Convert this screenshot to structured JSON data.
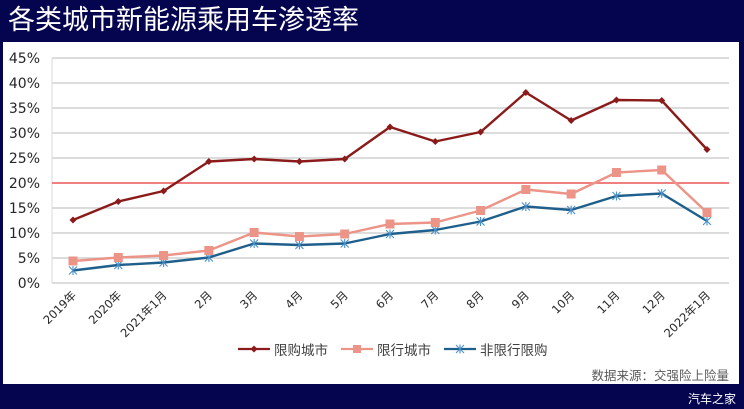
{
  "title": "各类城市新能源乘用车渗透率",
  "source_note": "数据来源：交强险上险量",
  "watermark": "汽车之家",
  "colors": {
    "background": "#05044f",
    "panel": "#ffffff",
    "grid": "#c8c8c8",
    "reference_line": "#f07070",
    "series_purchase_limited": "#8b1a1a",
    "series_traffic_limited": "#ec9488",
    "series_non_limited": "#1f5f8b"
  },
  "chart_data": {
    "type": "line",
    "title": "各类城市新能源乘用车渗透率",
    "xlabel": "",
    "ylabel": "",
    "ylim": [
      0,
      45
    ],
    "y_ticks": [
      "0%",
      "5%",
      "10%",
      "15%",
      "20%",
      "25%",
      "30%",
      "35%",
      "40%",
      "45%"
    ],
    "grid": true,
    "legend_position": "bottom",
    "categories": [
      "2019年",
      "2020年",
      "2021年1月",
      "2月",
      "3月",
      "4月",
      "5月",
      "6月",
      "7月",
      "8月",
      "9月",
      "10月",
      "11月",
      "12月",
      "2022年1月"
    ],
    "series": [
      {
        "name": "限购城市",
        "marker": "diamond",
        "color": "#8b1a1a",
        "values": [
          12.6,
          16.3,
          18.4,
          24.3,
          24.8,
          24.3,
          24.8,
          31.2,
          28.3,
          30.2,
          38.1,
          32.5,
          36.6,
          36.5,
          26.7
        ]
      },
      {
        "name": "限行城市",
        "marker": "square",
        "color": "#ec9488",
        "values": [
          4.4,
          5.1,
          5.5,
          6.5,
          10.1,
          9.3,
          9.8,
          11.8,
          12.1,
          14.5,
          18.7,
          17.8,
          22.1,
          22.6,
          14.1
        ]
      },
      {
        "name": "非限行限购",
        "marker": "asterisk",
        "color": "#1f5f8b",
        "values": [
          2.5,
          3.6,
          4.1,
          5.1,
          7.9,
          7.6,
          7.9,
          9.8,
          10.6,
          12.3,
          15.3,
          14.6,
          17.4,
          17.9,
          12.4
        ]
      }
    ],
    "annotations": [
      {
        "type": "horizontal_line",
        "y": 20,
        "color": "#f07070"
      }
    ]
  }
}
